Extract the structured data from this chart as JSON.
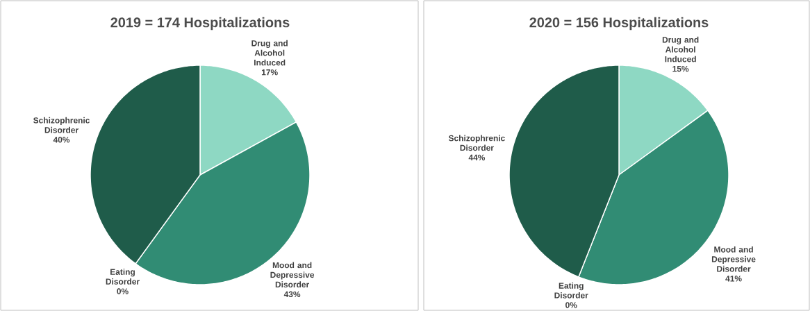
{
  "chart_data": [
    {
      "type": "pie",
      "title": "2019 = 174 Hospitalizations",
      "categories": [
        "Drug and Alcohol Induced",
        "Mood and Depressive Disorder",
        "Eating Disorder",
        "Schizophrenic Disorder"
      ],
      "values": [
        17,
        43,
        0,
        40
      ],
      "value_labels": [
        "17%",
        "43%",
        "0%",
        "40%"
      ],
      "colors": [
        "#8ed8c3",
        "#318c74",
        "#2a7a62",
        "#1f5c4a"
      ]
    },
    {
      "type": "pie",
      "title": "2020 = 156 Hospitalizations",
      "categories": [
        "Drug and Alcohol Induced",
        "Mood and Depressive Disorder",
        "Eating Disorder",
        "Schizophrenic Disorder"
      ],
      "values": [
        15,
        41,
        0,
        44
      ],
      "value_labels": [
        "15%",
        "41%",
        "0%",
        "44%"
      ],
      "colors": [
        "#8ed8c3",
        "#318c74",
        "#2a7a62",
        "#1f5c4a"
      ]
    }
  ]
}
